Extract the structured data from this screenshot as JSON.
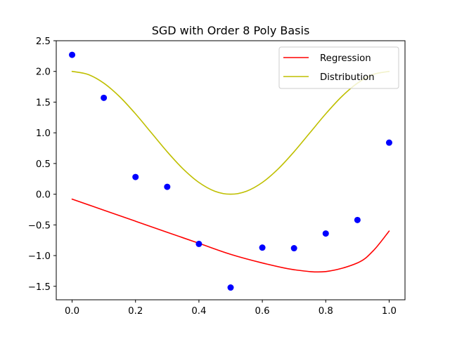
{
  "chart_data": {
    "type": "line",
    "title": "SGD with Order 8 Poly Basis",
    "xlabel": "",
    "ylabel": "",
    "xlim": [
      -0.05,
      1.05
    ],
    "ylim": [
      -1.72,
      2.5
    ],
    "xticks": [
      0.0,
      0.2,
      0.4,
      0.6,
      0.8,
      1.0
    ],
    "xtick_labels": [
      "0.0",
      "0.2",
      "0.4",
      "0.6",
      "0.8",
      "1.0"
    ],
    "yticks": [
      -1.5,
      -1.0,
      -0.5,
      0.0,
      0.5,
      1.0,
      1.5,
      2.0,
      2.5
    ],
    "ytick_labels": [
      "−1.5",
      "−1.0",
      "−0.5",
      "0.0",
      "0.5",
      "1.0",
      "1.5",
      "2.0",
      "2.5"
    ],
    "grid": false,
    "legend_position": "top-right",
    "scatter": {
      "color": "#0000ff",
      "x": [
        0.0,
        0.1,
        0.2,
        0.3,
        0.4,
        0.5,
        0.6,
        0.7,
        0.8,
        0.9,
        1.0
      ],
      "y": [
        2.27,
        1.57,
        0.28,
        0.12,
        -0.81,
        -1.52,
        -0.87,
        -0.88,
        -0.64,
        -0.42,
        0.84
      ]
    },
    "series": [
      {
        "name": "Regression",
        "color": "#ff0000",
        "x": [
          0.0,
          0.1,
          0.2,
          0.3,
          0.4,
          0.5,
          0.6,
          0.7,
          0.8,
          0.9,
          0.95,
          1.0
        ],
        "y": [
          -0.08,
          -0.26,
          -0.44,
          -0.62,
          -0.8,
          -0.98,
          -1.12,
          -1.23,
          -1.26,
          -1.12,
          -0.92,
          -0.6
        ]
      },
      {
        "name": "Distribution",
        "color": "#bfbf00",
        "x": [
          0.0,
          0.05,
          0.1,
          0.15,
          0.2,
          0.25,
          0.3,
          0.35,
          0.4,
          0.45,
          0.5,
          0.55,
          0.6,
          0.65,
          0.7,
          0.75,
          0.8,
          0.85,
          0.9,
          0.95,
          1.0
        ],
        "y": [
          2.0,
          1.951,
          1.809,
          1.588,
          1.309,
          1.0,
          0.691,
          0.412,
          0.191,
          0.049,
          0.0,
          0.049,
          0.191,
          0.412,
          0.691,
          1.0,
          1.309,
          1.588,
          1.809,
          1.951,
          2.0
        ]
      }
    ]
  }
}
